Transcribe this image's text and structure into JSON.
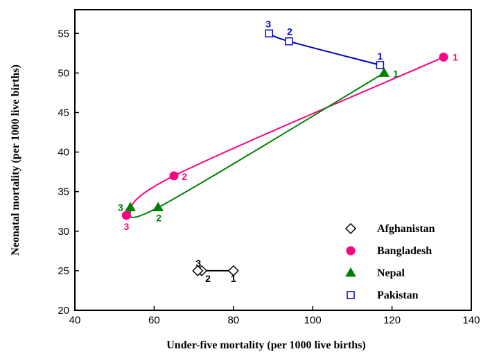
{
  "chart_data": {
    "type": "scatter",
    "title": "",
    "xlabel": "Under-five mortality (per 1000 live births)",
    "ylabel": "Neonatal mortality (per 1000 live births)",
    "xlim": [
      40,
      140
    ],
    "ylim": [
      20,
      58
    ],
    "x_ticks": [
      "40",
      "60",
      "80",
      "100",
      "120",
      "140"
    ],
    "y_ticks": [
      "20",
      "25",
      "30",
      "35",
      "40",
      "45",
      "50",
      "55"
    ],
    "grid": false,
    "legend_position": "bottom-right",
    "series": [
      {
        "name": "Afghanistan",
        "marker": "diamond-open",
        "color": "#000000",
        "points": [
          {
            "label": "1",
            "x": 80,
            "y": 25
          },
          {
            "label": "2",
            "x": 72,
            "y": 25
          },
          {
            "label": "3",
            "x": 71,
            "y": 25
          }
        ]
      },
      {
        "name": "Bangladesh",
        "marker": "circle",
        "color": "#ff0080",
        "points": [
          {
            "label": "1",
            "x": 133,
            "y": 52
          },
          {
            "label": "2",
            "x": 65,
            "y": 37
          },
          {
            "label": "3",
            "x": 53,
            "y": 32
          }
        ]
      },
      {
        "name": "Nepal",
        "marker": "triangle",
        "color": "#008000",
        "points": [
          {
            "label": "1",
            "x": 118,
            "y": 50
          },
          {
            "label": "2",
            "x": 61,
            "y": 33
          },
          {
            "label": "3",
            "x": 54,
            "y": 33
          }
        ]
      },
      {
        "name": "Pakistan",
        "marker": "square-open",
        "color": "#0000cc",
        "points": [
          {
            "label": "1",
            "x": 117,
            "y": 51
          },
          {
            "label": "2",
            "x": 94,
            "y": 54
          },
          {
            "label": "3",
            "x": 89,
            "y": 55
          }
        ]
      }
    ]
  }
}
